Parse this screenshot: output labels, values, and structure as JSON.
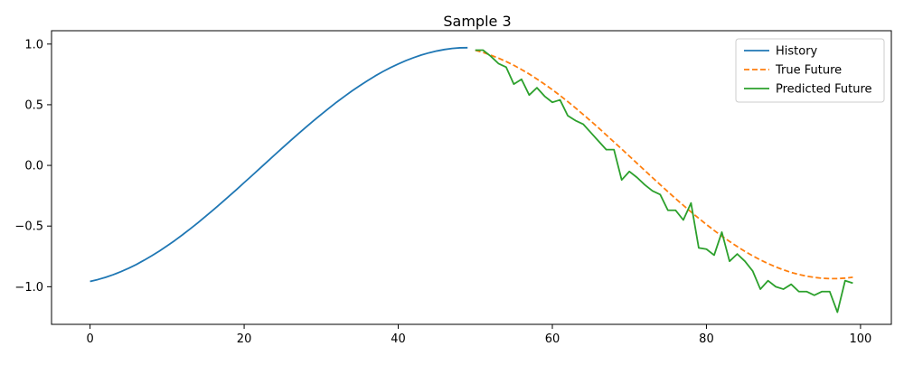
{
  "chart_data": {
    "type": "line",
    "title": "Sample 3",
    "xlabel": "",
    "ylabel": "",
    "xlim": [
      -5,
      104
    ],
    "ylim": [
      -1.31,
      1.11
    ],
    "xticks": [
      0,
      20,
      40,
      60,
      80,
      100
    ],
    "yticks": [
      -1.0,
      -0.5,
      0.0,
      0.5,
      1.0
    ],
    "xtick_labels": [
      "0",
      "20",
      "40",
      "60",
      "80",
      "100"
    ],
    "ytick_labels": [
      "−1.0",
      "−0.5",
      "0.0",
      "0.5",
      "1.0"
    ],
    "grid": false,
    "legend_position": "top-right",
    "series": [
      {
        "name": "History",
        "color": "#1f77b4",
        "style": "solid",
        "x": [
          0,
          1,
          2,
          3,
          4,
          5,
          6,
          7,
          8,
          9,
          10,
          11,
          12,
          13,
          14,
          15,
          16,
          17,
          18,
          19,
          20,
          21,
          22,
          23,
          24,
          25,
          26,
          27,
          28,
          29,
          30,
          31,
          32,
          33,
          34,
          35,
          36,
          37,
          38,
          39,
          40,
          41,
          42,
          43,
          44,
          45,
          46,
          47,
          48,
          49
        ],
        "y": [
          -0.956,
          -0.941,
          -0.923,
          -0.901,
          -0.876,
          -0.848,
          -0.817,
          -0.782,
          -0.745,
          -0.706,
          -0.663,
          -0.619,
          -0.572,
          -0.523,
          -0.473,
          -0.42,
          -0.367,
          -0.312,
          -0.256,
          -0.2,
          -0.142,
          -0.085,
          -0.027,
          0.031,
          0.089,
          0.146,
          0.203,
          0.259,
          0.314,
          0.368,
          0.42,
          0.471,
          0.521,
          0.568,
          0.614,
          0.657,
          0.698,
          0.737,
          0.773,
          0.806,
          0.836,
          0.864,
          0.888,
          0.91,
          0.928,
          0.943,
          0.955,
          0.964,
          0.969,
          0.97
        ]
      },
      {
        "name": "True Future",
        "color": "#ff7f0e",
        "style": "dashed",
        "x": [
          50,
          51,
          52,
          53,
          54,
          55,
          56,
          57,
          58,
          59,
          60,
          61,
          62,
          63,
          64,
          65,
          66,
          67,
          68,
          69,
          70,
          71,
          72,
          73,
          74,
          75,
          76,
          77,
          78,
          79,
          80,
          81,
          82,
          83,
          84,
          85,
          86,
          87,
          88,
          89,
          90,
          91,
          92,
          93,
          94,
          95,
          96,
          97,
          98,
          99
        ],
        "y": [
          0.949,
          0.931,
          0.909,
          0.884,
          0.856,
          0.825,
          0.79,
          0.753,
          0.712,
          0.669,
          0.624,
          0.576,
          0.526,
          0.474,
          0.42,
          0.365,
          0.309,
          0.251,
          0.193,
          0.135,
          0.076,
          0.017,
          -0.042,
          -0.101,
          -0.159,
          -0.217,
          -0.274,
          -0.329,
          -0.383,
          -0.436,
          -0.487,
          -0.536,
          -0.583,
          -0.627,
          -0.669,
          -0.709,
          -0.745,
          -0.779,
          -0.809,
          -0.837,
          -0.861,
          -0.882,
          -0.899,
          -0.913,
          -0.923,
          -0.93,
          -0.933,
          -0.933,
          -0.929,
          -0.922
        ]
      },
      {
        "name": "Predicted Future",
        "color": "#2ca02c",
        "style": "solid",
        "x": [
          50,
          51,
          52,
          53,
          54,
          55,
          56,
          57,
          58,
          59,
          60,
          61,
          62,
          63,
          64,
          65,
          66,
          67,
          68,
          69,
          70,
          71,
          72,
          73,
          74,
          75,
          76,
          77,
          78,
          79,
          80,
          81,
          82,
          83,
          84,
          85,
          86,
          87,
          88,
          89,
          90,
          91,
          92,
          93,
          94,
          95,
          96,
          97,
          98,
          99
        ],
        "y": [
          0.95,
          0.95,
          0.9,
          0.84,
          0.81,
          0.67,
          0.71,
          0.58,
          0.64,
          0.57,
          0.52,
          0.54,
          0.41,
          0.37,
          0.34,
          0.27,
          0.2,
          0.13,
          0.13,
          -0.12,
          -0.05,
          -0.1,
          -0.16,
          -0.21,
          -0.24,
          -0.37,
          -0.37,
          -0.45,
          -0.31,
          -0.68,
          -0.69,
          -0.74,
          -0.55,
          -0.79,
          -0.73,
          -0.79,
          -0.87,
          -1.02,
          -0.95,
          -1.0,
          -1.02,
          -0.98,
          -1.04,
          -1.04,
          -1.07,
          -1.04,
          -1.04,
          -1.21,
          -0.95,
          -0.97
        ]
      }
    ]
  }
}
